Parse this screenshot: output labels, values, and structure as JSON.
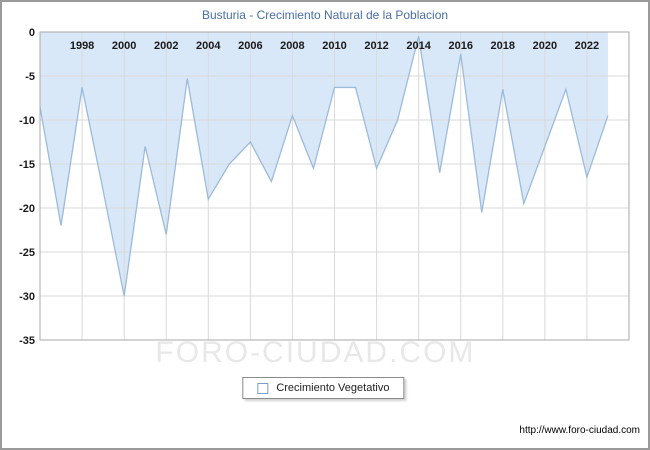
{
  "title": "Busturia - Crecimiento Natural de la Poblacion",
  "watermark": "FORO-CIUDAD.COM",
  "legend": {
    "label": "Crecimiento Vegetativo"
  },
  "footer": {
    "url": "http://www.foro-ciudad.com"
  },
  "colors": {
    "fill": "#d9e8f8",
    "line": "#9cbbda",
    "grid": "#d9d9d9",
    "plot_border": "#a9a9a9",
    "tick_text": "#1a1a1a",
    "title_text": "#4a6fa5",
    "watermark_text": "#e8e8e8"
  },
  "chart_data": {
    "type": "area",
    "title": "Busturia - Crecimiento Natural de la Poblacion",
    "xlabel": "",
    "ylabel": "",
    "x": [
      1996,
      1997,
      1998,
      1999,
      2000,
      2001,
      2002,
      2003,
      2004,
      2005,
      2006,
      2007,
      2008,
      2009,
      2010,
      2011,
      2012,
      2013,
      2014,
      2015,
      2016,
      2017,
      2018,
      2019,
      2020,
      2021,
      2022,
      2023
    ],
    "series": [
      {
        "name": "Crecimiento Vegetativo",
        "values": [
          -8.5,
          -22,
          -6.3,
          -18,
          -30,
          -13,
          -23,
          -5.3,
          -19,
          -15,
          -12.5,
          -17,
          -9.5,
          -15.5,
          -6.3,
          -6.3,
          -15.5,
          -10,
          -0.5,
          -16,
          -2.5,
          -20.5,
          -6.5,
          -19.5,
          -13,
          -6.5,
          -16.5,
          -9.5
        ]
      }
    ],
    "ylim": [
      -35,
      0
    ],
    "yticks": [
      0,
      -5,
      -10,
      -15,
      -20,
      -25,
      -30,
      -35
    ],
    "xticks": [
      1998,
      2000,
      2002,
      2004,
      2006,
      2008,
      2010,
      2012,
      2014,
      2016,
      2018,
      2020,
      2022
    ],
    "grid": true,
    "legend_position": "bottom",
    "fill_direction": "from-top"
  }
}
